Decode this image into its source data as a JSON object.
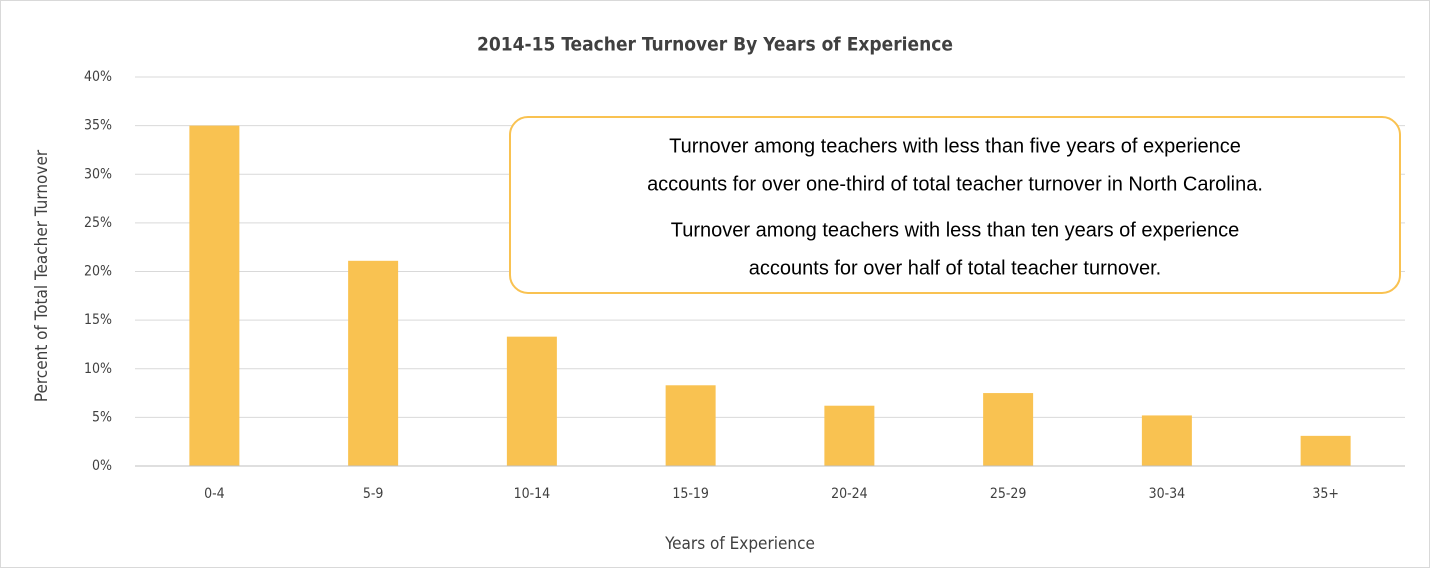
{
  "chart_data": {
    "type": "bar",
    "title": "2014-15 Teacher Turnover By Years of Experience",
    "x_label": "Years of Experience",
    "y_label": "Percent of Total Teacher Turnover",
    "categories": [
      "0-4",
      "5-9",
      "10-14",
      "15-19",
      "20-24",
      "25-29",
      "30-34",
      "35+"
    ],
    "values": [
      35.0,
      21.1,
      13.3,
      8.3,
      6.2,
      7.5,
      5.2,
      3.1
    ],
    "color": "#f9c251",
    "ylim": [
      0,
      40
    ],
    "yticks": [
      {
        "value": 0,
        "label": "0%"
      },
      {
        "value": 5,
        "label": "5%"
      },
      {
        "value": 10,
        "label": "10%"
      },
      {
        "value": 15,
        "label": "15%"
      },
      {
        "value": 20,
        "label": "20%"
      },
      {
        "value": 25,
        "label": "25%"
      },
      {
        "value": 30,
        "label": "30%"
      },
      {
        "value": 35,
        "label": "35%"
      },
      {
        "value": 40,
        "label": "40%"
      }
    ],
    "grid": true,
    "annotations": [
      [
        "Turnover among teachers with less than five years of experience",
        "accounts for over one-third of total teacher turnover in North Carolina."
      ],
      [
        "Turnover among teachers with less than ten years of experience",
        "accounts for over half of total teacher turnover."
      ]
    ]
  }
}
